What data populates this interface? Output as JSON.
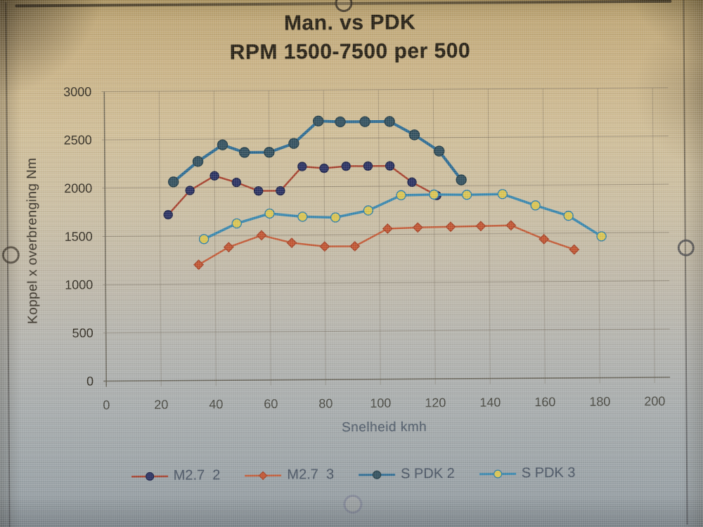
{
  "chart_data": {
    "type": "line",
    "title": "Man. vs PDK",
    "subtitle": "RPM 1500-7500 per 500",
    "xlabel": "Snelheid kmh",
    "ylabel": "Koppel x overbrenging Nm",
    "xlim": [
      0,
      200
    ],
    "ylim": [
      0,
      3000
    ],
    "xticks": [
      0,
      20,
      40,
      60,
      80,
      100,
      120,
      140,
      160,
      180,
      200
    ],
    "yticks": [
      0,
      500,
      1000,
      1500,
      2000,
      2500,
      3000
    ],
    "grid": true,
    "legend_position": "bottom",
    "series": [
      {
        "id": "m27-2",
        "name": "M2.7  2",
        "x": [
          23,
          31,
          40,
          48,
          56,
          64,
          72,
          80,
          88,
          96,
          104,
          112,
          121
        ],
        "values": [
          1720,
          1970,
          2120,
          2050,
          1960,
          1960,
          2210,
          2190,
          2210,
          2210,
          2210,
          2040,
          1900
        ],
        "line_color": "#a5402d",
        "line_width": 2.5,
        "marker": "circle",
        "marker_fill": "#2a3162",
        "marker_stroke": "#1d2348",
        "marker_size": 6
      },
      {
        "id": "m27-3",
        "name": "M2.7  3",
        "x": [
          34,
          45,
          57,
          68,
          80,
          91,
          103,
          114,
          126,
          137,
          148,
          160,
          171
        ],
        "values": [
          1200,
          1380,
          1500,
          1420,
          1380,
          1380,
          1560,
          1570,
          1575,
          1580,
          1585,
          1440,
          1330
        ],
        "line_color": "#c25a36",
        "line_width": 2.5,
        "marker": "diamond",
        "marker_fill": "#c05431",
        "marker_stroke": "#a54327",
        "marker_size": 6.5
      },
      {
        "id": "spdk-2",
        "name": "S PDK 2",
        "x": [
          25,
          34,
          43,
          51,
          60,
          69,
          78,
          86,
          95,
          104,
          113,
          122,
          130
        ],
        "values": [
          2060,
          2270,
          2440,
          2360,
          2360,
          2450,
          2680,
          2670,
          2670,
          2670,
          2530,
          2360,
          2060
        ],
        "line_color": "#2d6b92",
        "line_width": 4,
        "marker": "circle",
        "marker_fill": "#32505e",
        "marker_stroke": "#223c46",
        "marker_size": 7
      },
      {
        "id": "spdk-3",
        "name": "S PDK 3",
        "x": [
          36,
          48,
          60,
          72,
          84,
          96,
          108,
          120,
          132,
          145,
          157,
          169,
          181
        ],
        "values": [
          1465,
          1625,
          1725,
          1690,
          1680,
          1750,
          1905,
          1910,
          1905,
          1910,
          1790,
          1680,
          1465
        ],
        "line_color": "#3886ad",
        "line_width": 3.5,
        "marker": "circle",
        "marker_fill": "#d9c352",
        "marker_stroke": "#2e7da6",
        "marker_size": 6.5
      }
    ]
  }
}
